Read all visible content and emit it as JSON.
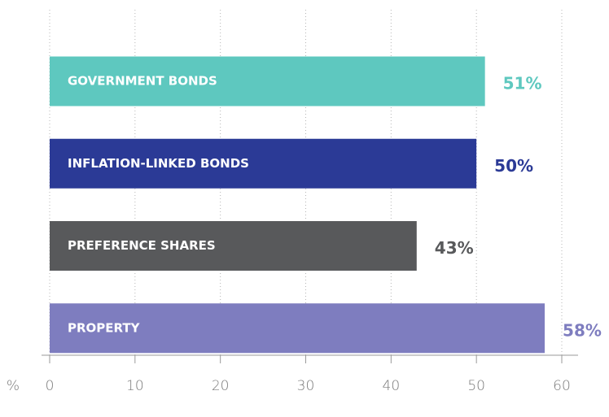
{
  "chart_data": {
    "type": "barh",
    "categories": [
      "GOVERNMENT BONDS",
      "INFLATION-LINKED BONDS",
      "PREFERENCE SHARES",
      "PROPERTY"
    ],
    "values": [
      51,
      50,
      43,
      58
    ],
    "value_labels": [
      "51%",
      "50%",
      "43%",
      "58%"
    ],
    "colors": [
      "#5ec8bf",
      "#2b3a96",
      "#58595b",
      "#7e7dbf"
    ],
    "x_unit": "%",
    "xlim": [
      0,
      60
    ],
    "xticks": [
      0,
      10,
      20,
      30,
      40,
      50,
      60
    ],
    "grid": true
  }
}
